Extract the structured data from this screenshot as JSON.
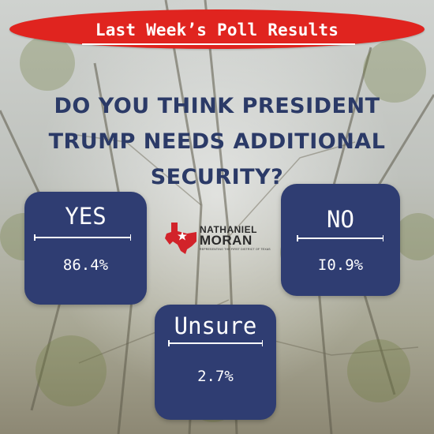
{
  "banner": {
    "title": "Last Week’s Poll Results"
  },
  "question": "DO YOU THINK PRESIDENT TRUMP NEEDS ADDITIONAL SECURITY?",
  "results": [
    {
      "answer": "YES",
      "percent": "86.4%"
    },
    {
      "answer": "NO",
      "percent": "I0.9%"
    },
    {
      "answer": "Unsure",
      "percent": "2.7%"
    }
  ],
  "logo": {
    "name_first": "NATHANIEL",
    "name_last": "MORAN",
    "tagline": "REPRESENTING THE FIRST DISTRICT OF TEXAS"
  },
  "colors": {
    "banner": "#e0241f",
    "card": "#2f3d72",
    "question_text": "#2b3a67",
    "logo_red": "#d2232a"
  }
}
